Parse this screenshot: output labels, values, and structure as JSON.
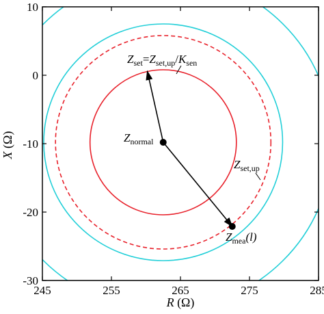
{
  "chart_data": {
    "type": "scatter",
    "xlabel": "R (Ω)",
    "ylabel": "X (Ω)",
    "xlim": [
      245,
      285
    ],
    "ylim": [
      -30,
      10
    ],
    "xticks": [
      "245",
      "255",
      "265",
      "275",
      "285"
    ],
    "yticks": [
      "10",
      "0",
      "-10",
      "-20",
      "-30"
    ],
    "grid": false,
    "circles": [
      {
        "center": [
          262.5,
          -9.8
        ],
        "radius": 10.6,
        "color": "#e8202a",
        "style": "solid"
      },
      {
        "center": [
          262.5,
          -9.8
        ],
        "radius": 15.6,
        "color": "#e8202a",
        "style": "dashed"
      },
      {
        "center": [
          262.5,
          -9.8
        ],
        "radius": 17.3,
        "color": "#22cfd8",
        "style": "solid"
      },
      {
        "center": [
          262.5,
          -9.8
        ],
        "radius": 24.5,
        "color": "#22cfd8",
        "style": "solid"
      }
    ],
    "points": [
      {
        "name": "Z_normal",
        "x": 262.5,
        "y": -9.8
      },
      {
        "name": "Z_mea(l)",
        "x": 272.5,
        "y": -22.1
      }
    ],
    "arrows": [
      {
        "from": [
          262.5,
          -9.8
        ],
        "to": [
          260.2,
          0.6
        ]
      },
      {
        "from": [
          262.5,
          -9.8
        ],
        "to": [
          272.5,
          -22.1
        ]
      }
    ],
    "annotations": {
      "z_set": {
        "main": "Z",
        "sub": "set",
        "eq": "=",
        "main2": "Z",
        "sub2": "set,up",
        "slash": "/",
        "main3": "K",
        "sub3": "sen"
      },
      "z_normal": {
        "main": "Z",
        "sub": "normal"
      },
      "z_setup": {
        "main": "Z",
        "sub": "set,up"
      },
      "z_mea": {
        "main": "Z",
        "sub": "mea",
        "tail": "(l)"
      }
    }
  }
}
